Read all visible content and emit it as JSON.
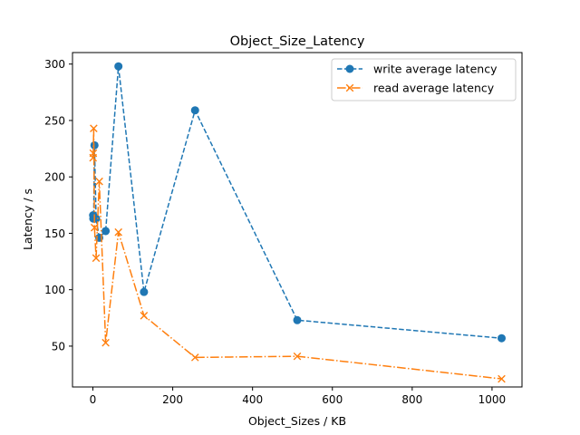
{
  "chart_data": {
    "type": "line",
    "title": "Object_Size_Latency",
    "xlabel": "Object_Sizes / KB",
    "ylabel": "Latency / s",
    "xlim": [
      -51.1,
      1075.1
    ],
    "ylim": [
      13.8,
      310.2
    ],
    "xticks": [
      "0",
      "200",
      "400",
      "600",
      "800",
      "1000"
    ],
    "xtick_values": [
      0,
      200,
      400,
      600,
      800,
      1000
    ],
    "yticks": [
      "50",
      "100",
      "150",
      "200",
      "250",
      "300"
    ],
    "ytick_values": [
      50,
      100,
      150,
      200,
      250,
      300
    ],
    "grid": false,
    "legend_position": "top-right",
    "series": [
      {
        "name": "write average latency",
        "color": "#1f77b4",
        "linestyle": "dashed",
        "marker": "circle",
        "x": [
          0.5,
          1,
          2,
          4,
          8,
          16,
          32,
          64,
          128,
          256,
          512,
          1024
        ],
        "y": [
          166,
          163,
          165,
          228,
          163,
          146,
          152,
          298,
          98,
          259,
          73,
          57
        ]
      },
      {
        "name": "read average latency",
        "color": "#ff7f0e",
        "linestyle": "dashdot",
        "marker": "x",
        "x": [
          0.5,
          1,
          2,
          4,
          8,
          16,
          32,
          64,
          128,
          256,
          512,
          1024
        ],
        "y": [
          217,
          221,
          243,
          155,
          128,
          196,
          53,
          151,
          77,
          40,
          41,
          21
        ]
      }
    ]
  }
}
